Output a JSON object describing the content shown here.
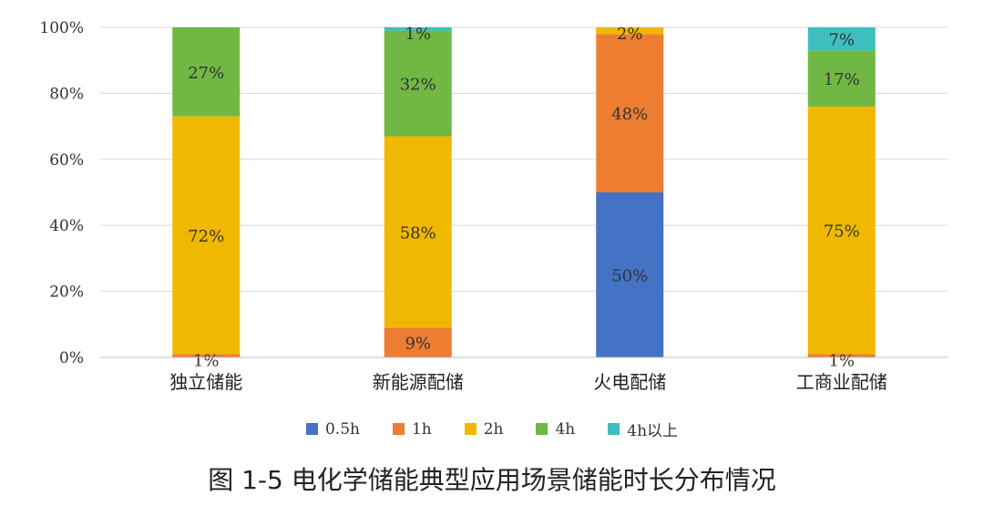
{
  "caption": "图 1-5 电化学储能典型应用场景储能时长分布情况",
  "chart_data": {
    "type": "bar",
    "stacked": true,
    "categories": [
      "独立储能",
      "新能源配储",
      "火电配储",
      "工商业配储"
    ],
    "yticks": [
      "0%",
      "20%",
      "40%",
      "60%",
      "80%",
      "100%"
    ],
    "ylim": [
      0,
      100
    ],
    "grid": true,
    "legend_position": "bottom",
    "series": [
      {
        "name": "0.5h",
        "color": "#4472C4",
        "values": [
          0,
          0,
          50,
          0
        ],
        "labels": [
          "",
          "",
          "50%",
          ""
        ]
      },
      {
        "name": "1h",
        "color": "#ED7D31",
        "values": [
          1,
          9,
          48,
          1
        ],
        "labels": [
          "1%",
          "9%",
          "48%",
          "1%"
        ]
      },
      {
        "name": "2h",
        "color": "#F0B800",
        "values": [
          72,
          58,
          2,
          75
        ],
        "labels": [
          "72%",
          "58%",
          "2%",
          "75%"
        ]
      },
      {
        "name": "4h",
        "color": "#70B843",
        "values": [
          27,
          32,
          0,
          17
        ],
        "labels": [
          "27%",
          "32%",
          "",
          "17%"
        ]
      },
      {
        "name": "4h以上",
        "color": "#3DBFBF",
        "values": [
          0,
          1,
          0,
          7
        ],
        "labels": [
          "",
          "1%",
          "",
          "7%"
        ]
      }
    ]
  }
}
